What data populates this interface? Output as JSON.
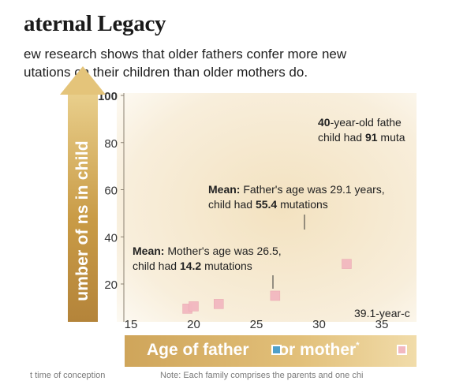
{
  "title": "aternal Legacy",
  "subtitle": {
    "line1": "ew research shows that older fathers confer more new",
    "line2": "utations on their children than older mothers do."
  },
  "y_axis_label": "umber of ns in child",
  "x_axis_label": "Age of father",
  "x_axis_label_mid": "or mother",
  "x_axis_label_sup": "*",
  "footnote_left": "t time of conception",
  "footnote_right": "Note: Each family comprises the parents and one chi",
  "colors": {
    "father": "#4f9fc9",
    "mother": "#f2b8c0",
    "axis_band": "#d4a85c",
    "plot_bg": "#f6ead2"
  },
  "chart_data": {
    "type": "scatter",
    "xlim": [
      15,
      40
    ],
    "ylim": [
      10,
      100
    ],
    "x_ticks": [
      15,
      20,
      25,
      30,
      35
    ],
    "y_ticks": [
      20,
      40,
      60,
      80,
      100
    ],
    "x_tick_labels": [
      "15",
      "20",
      "25",
      "30",
      "35"
    ],
    "y_tick_labels": [
      "20",
      "40",
      "60",
      "80",
      "100"
    ],
    "grid": false,
    "legend": "bottom",
    "series": [
      {
        "name": "Age of mother",
        "color": "#f2b8c0",
        "points": [
          {
            "x": 19.5,
            "y": 9.5
          },
          {
            "x": 20.0,
            "y": 10.5
          },
          {
            "x": 22.0,
            "y": 11.5
          },
          {
            "x": 26.5,
            "y": 15.0
          },
          {
            "x": 32.2,
            "y": 28.5
          }
        ]
      }
    ],
    "annotations": [
      {
        "id": "father-40",
        "bold": "40",
        "line1_rest": "-year-old fathe",
        "line2_pre": "child had ",
        "line2_bold": "91",
        "line2_post": " muta"
      },
      {
        "id": "father-mean",
        "bold": "Mean:",
        "line1_rest": " Father's age was 29.1 years,",
        "line2_pre": "child had ",
        "line2_bold": "55.4",
        "line2_post": " mutations",
        "x": 29.1,
        "y": 55.4
      },
      {
        "id": "mother-mean",
        "bold": "Mean:",
        "line1_rest": " Mother's age was 26.5,",
        "line2_pre": "child had ",
        "line2_bold": "14.2",
        "line2_post": " mutations",
        "x": 26.5,
        "y": 14.2
      },
      {
        "id": "father-39",
        "text": "39.1-year-c"
      }
    ]
  }
}
